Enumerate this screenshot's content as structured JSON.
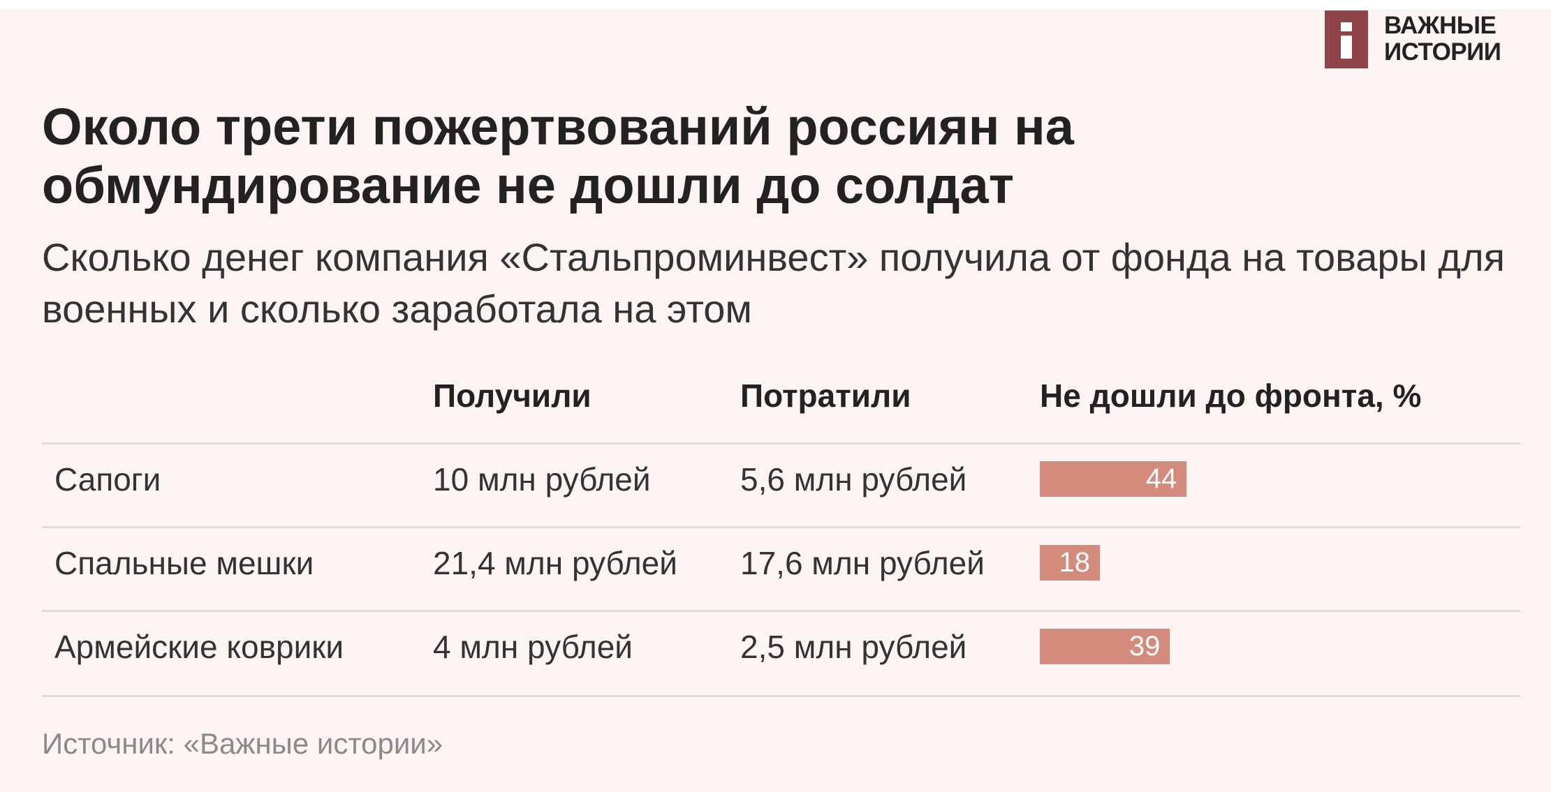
{
  "brand": {
    "logo_text_line1": "ВАЖНЫЕ",
    "logo_text_line2": "ИСТОРИИ",
    "logo_color": "#8e4448"
  },
  "title": "Около трети пожертвований россиян на обмундирование не дошли до солдат",
  "subtitle": "Сколько денег компания «Стальпроминвест» получила от фонда на товары для военных и сколько заработала на этом",
  "source": "Источник: «Важные истории»",
  "chart_data": {
    "type": "table",
    "columns": [
      "",
      "Получили",
      "Потратили",
      "Не дошли до фронта, %"
    ],
    "rows": [
      {
        "item": "Сапоги",
        "received": "10 млн рублей",
        "spent": "5,6 млн рублей",
        "percent": 44
      },
      {
        "item": "Спальные мешки",
        "received": "21,4 млн рублей",
        "spent": "17,6 млн рублей",
        "percent": 18
      },
      {
        "item": "Армейские коврики",
        "received": "4 млн рублей",
        "spent": "2,5 млн рублей",
        "percent": 39
      }
    ],
    "bar_color": "#d58b7b",
    "background": "#fcf3f3"
  }
}
